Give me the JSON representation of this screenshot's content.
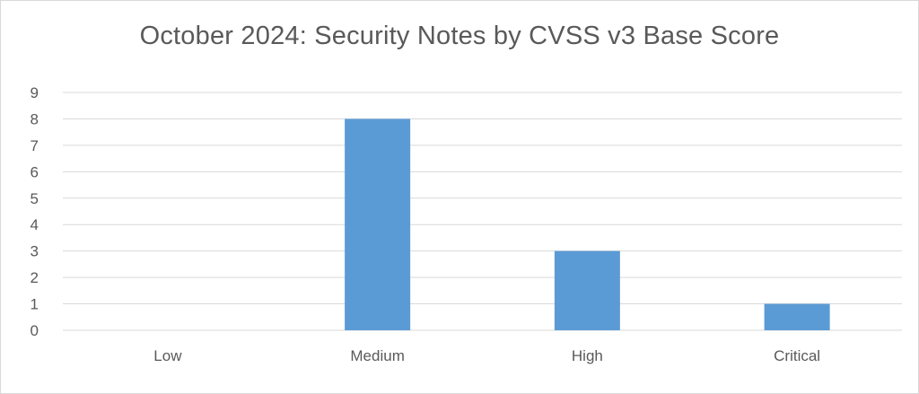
{
  "chart_data": {
    "type": "bar",
    "title": "October 2024: Security Notes by CVSS v3 Base Score",
    "xlabel": "",
    "ylabel": "",
    "categories": [
      "Low",
      "Medium",
      "High",
      "Critical"
    ],
    "values": [
      0,
      8,
      3,
      1
    ],
    "ylim": [
      0,
      9
    ],
    "yticks": [
      "0",
      "1",
      "2",
      "3",
      "4",
      "5",
      "6",
      "7",
      "8",
      "9"
    ],
    "grid": true,
    "legend": "none",
    "bar_color": "#5b9bd5",
    "gridline_color": "#d9d9d9",
    "text_color": "#595959"
  }
}
